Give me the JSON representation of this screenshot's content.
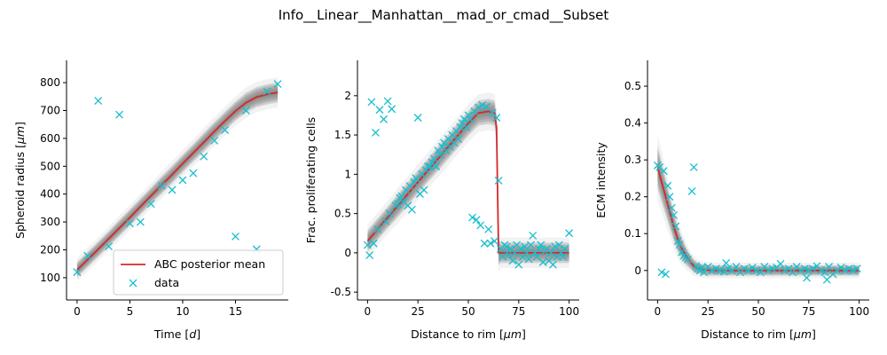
{
  "figure": {
    "suptitle": "Info__Linear__Manhattan__mad_or_cmad__Subset",
    "colors": {
      "band": "#7f7f7f",
      "mean": "#d62728",
      "data": "#17becf",
      "axis": "#000000"
    }
  },
  "chart_data": [
    {
      "type": "line",
      "xlabel": "Time [d]",
      "ylabel": "Spheroid radius [μm]",
      "xlim": [
        -1,
        20
      ],
      "ylim": [
        20,
        880
      ],
      "xticks": [
        0,
        5,
        10,
        15
      ],
      "yticks": [
        100,
        200,
        300,
        400,
        500,
        600,
        700,
        800
      ],
      "legend": {
        "placement": "lower-right",
        "entries": [
          "ABC posterior mean",
          "data"
        ]
      },
      "series": [
        {
          "name": "ABC posterior mean",
          "x": [
            0,
            1,
            2,
            3,
            4,
            5,
            6,
            7,
            8,
            9,
            10,
            11,
            12,
            13,
            14,
            15,
            16,
            17,
            18,
            19
          ],
          "y": [
            128,
            165,
            202,
            240,
            278,
            316,
            355,
            394,
            432,
            470,
            510,
            548,
            586,
            625,
            662,
            698,
            728,
            748,
            758,
            765
          ],
          "band_halfwidth": [
            28,
            28,
            28,
            28,
            30,
            30,
            30,
            30,
            32,
            32,
            32,
            32,
            34,
            34,
            34,
            35,
            36,
            36,
            36,
            36
          ]
        },
        {
          "name": "data",
          "x": [
            0,
            1,
            2,
            3,
            4,
            5,
            6,
            7,
            8,
            9,
            10,
            11,
            12,
            13,
            14,
            15,
            16,
            17,
            18,
            19
          ],
          "y": [
            120,
            178,
            735,
            212,
            685,
            295,
            300,
            365,
            430,
            415,
            450,
            475,
            535,
            592,
            630,
            248,
            700,
            202,
            768,
            795
          ]
        }
      ]
    },
    {
      "type": "line",
      "xlabel": "Distance to rim [μm]",
      "ylabel": "Frac. proliferating cells",
      "xlim": [
        -5,
        105
      ],
      "ylim": [
        -0.6,
        2.45
      ],
      "xticks": [
        0,
        25,
        50,
        75,
        100
      ],
      "yticks": [
        -0.5,
        0.0,
        0.5,
        1.0,
        1.5,
        2.0
      ],
      "series": [
        {
          "name": "ABC posterior mean",
          "x": [
            0,
            5,
            10,
            15,
            20,
            25,
            30,
            35,
            40,
            45,
            50,
            55,
            60,
            63,
            64,
            65,
            66,
            70,
            75,
            80,
            85,
            90,
            95,
            100
          ],
          "y": [
            0.15,
            0.3,
            0.45,
            0.6,
            0.75,
            0.9,
            1.05,
            1.2,
            1.35,
            1.5,
            1.65,
            1.78,
            1.8,
            1.78,
            1.6,
            0.0,
            0.0,
            0.0,
            0.0,
            0.0,
            0.0,
            0.0,
            0.0,
            0.0
          ],
          "band_halfwidth": [
            0.14,
            0.14,
            0.14,
            0.15,
            0.15,
            0.15,
            0.15,
            0.16,
            0.16,
            0.16,
            0.16,
            0.16,
            0.16,
            0.16,
            0.16,
            0.16,
            0.13,
            0.13,
            0.13,
            0.13,
            0.13,
            0.13,
            0.13,
            0.13
          ]
        },
        {
          "name": "data",
          "x": [
            0,
            1,
            2,
            3,
            4,
            5,
            6,
            8,
            9,
            10,
            11,
            12,
            14,
            15,
            16,
            17,
            18,
            19,
            20,
            21,
            22,
            23,
            24,
            25,
            26,
            27,
            28,
            29,
            30,
            31,
            32,
            33,
            34,
            35,
            36,
            37,
            38,
            39,
            40,
            41,
            42,
            43,
            44,
            45,
            46,
            47,
            48,
            49,
            50,
            51,
            52,
            53,
            54,
            55,
            56,
            57,
            58,
            59,
            60,
            61,
            62,
            63,
            64,
            65,
            66,
            67,
            68,
            69,
            70,
            71,
            72,
            73,
            74,
            75,
            76,
            77,
            78,
            79,
            80,
            81,
            82,
            83,
            84,
            85,
            86,
            87,
            88,
            89,
            90,
            91,
            92,
            93,
            94,
            95,
            96,
            97,
            98,
            100
          ],
          "y": [
            0.1,
            -0.03,
            1.92,
            0.12,
            1.53,
            0.3,
            1.82,
            1.7,
            0.4,
            1.93,
            0.5,
            1.83,
            0.6,
            0.62,
            0.7,
            0.72,
            0.65,
            0.8,
            0.6,
            0.85,
            0.55,
            0.9,
            0.95,
            1.72,
            0.75,
            1.0,
            0.8,
            1.05,
            1.1,
            1.1,
            1.15,
            1.2,
            1.1,
            1.3,
            1.25,
            1.35,
            1.4,
            1.3,
            1.45,
            1.35,
            1.5,
            1.4,
            1.55,
            1.45,
            1.6,
            1.65,
            1.7,
            1.6,
            1.75,
            1.7,
            0.45,
            1.8,
            0.42,
            1.85,
            0.35,
            1.88,
            0.12,
            1.86,
            0.3,
            0.12,
            1.78,
            0.15,
            1.72,
            0.92,
            0.05,
            -0.05,
            0.1,
            0.08,
            -0.02,
            0.05,
            -0.1,
            0.0,
            0.1,
            -0.15,
            0.05,
            -0.05,
            0.08,
            0.0,
            -0.08,
            0.1,
            0.22,
            0.0,
            -0.05,
            0.05,
            0.1,
            -0.12,
            0.02,
            0.05,
            -0.1,
            0.0,
            -0.15,
            0.08,
            -0.05,
            0.1,
            0.0,
            -0.05,
            0.05,
            0.25
          ]
        }
      ]
    },
    {
      "type": "line",
      "xlabel": "Distance to rim [μm]",
      "ylabel": "ECM intensity",
      "xlim": [
        -5,
        105
      ],
      "ylim": [
        -0.08,
        0.57
      ],
      "xticks": [
        0,
        25,
        50,
        75,
        100
      ],
      "yticks": [
        0.0,
        0.1,
        0.2,
        0.3,
        0.4,
        0.5
      ],
      "series": [
        {
          "name": "ABC posterior mean",
          "x": [
            0,
            2,
            4,
            6,
            8,
            10,
            12,
            14,
            16,
            18,
            20,
            22,
            25,
            30,
            35,
            40,
            45,
            50,
            55,
            60,
            65,
            70,
            75,
            80,
            85,
            90,
            95,
            100
          ],
          "y": [
            0.28,
            0.24,
            0.2,
            0.16,
            0.12,
            0.085,
            0.06,
            0.04,
            0.025,
            0.012,
            0.006,
            0.003,
            0.001,
            0,
            0,
            0,
            0,
            0,
            0,
            0,
            0,
            0,
            0,
            0,
            0,
            0,
            0,
            0
          ],
          "band_halfwidth": [
            0.06,
            0.055,
            0.05,
            0.045,
            0.04,
            0.035,
            0.03,
            0.025,
            0.02,
            0.018,
            0.016,
            0.015,
            0.015,
            0.014,
            0.014,
            0.014,
            0.014,
            0.014,
            0.014,
            0.014,
            0.014,
            0.014,
            0.014,
            0.014,
            0.014,
            0.014,
            0.014,
            0.014
          ]
        },
        {
          "name": "data",
          "x": [
            0,
            1,
            2,
            3,
            4,
            5,
            6,
            7,
            8,
            9,
            10,
            11,
            12,
            13,
            14,
            15,
            17,
            18,
            19,
            20,
            21,
            22,
            23,
            25,
            27,
            29,
            31,
            33,
            34,
            35,
            37,
            39,
            41,
            43,
            45,
            47,
            49,
            51,
            53,
            55,
            57,
            59,
            61,
            63,
            65,
            67,
            69,
            71,
            73,
            74,
            75,
            77,
            79,
            81,
            83,
            84,
            85,
            87,
            89,
            91,
            93,
            95,
            97,
            99
          ],
          "y": [
            0.285,
            0.28,
            -0.005,
            0.27,
            -0.01,
            0.23,
            0.2,
            0.17,
            0.15,
            0.12,
            0.08,
            0.07,
            0.05,
            0.04,
            0.035,
            0.03,
            0.215,
            0.28,
            0.012,
            0.005,
            0.0,
            0.008,
            -0.005,
            0.01,
            0.0,
            0.005,
            0.0,
            -0.003,
            0.02,
            0.005,
            0.0,
            0.01,
            -0.005,
            0.005,
            0.0,
            0.008,
            0.0,
            -0.005,
            0.01,
            0.0,
            0.005,
            0.008,
            0.018,
            0.0,
            0.005,
            -0.005,
            0.01,
            0.0,
            0.005,
            -0.02,
            0.0,
            0.005,
            0.012,
            0.0,
            -0.005,
            -0.025,
            0.01,
            -0.01,
            0.0,
            0.008,
            0.0,
            0.005,
            0.0,
            0.005
          ]
        }
      ]
    }
  ]
}
